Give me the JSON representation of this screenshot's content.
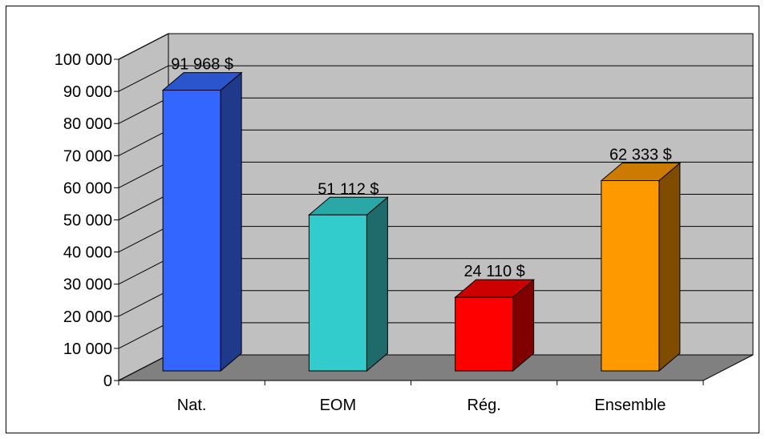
{
  "chart_data": {
    "type": "bar",
    "categories": [
      "Nat.",
      "EOM",
      "Rég.",
      "Ensemble"
    ],
    "values": [
      91968,
      51112,
      24110,
      62333
    ],
    "data_labels": [
      "91 968 $",
      "51 112 $",
      "24 110 $",
      "62 333 $"
    ],
    "y_ticks": [
      "0",
      "10 000",
      "20 000",
      "30 000",
      "40 000",
      "50 000",
      "60 000",
      "70 000",
      "80 000",
      "90 000",
      "100 000"
    ],
    "ylim": [
      0,
      100000
    ],
    "grid": true,
    "three_d": true,
    "title": "",
    "xlabel": "",
    "ylabel": "",
    "colors": {
      "bar_front": [
        "#3366ff",
        "#33cccc",
        "#ff0000",
        "#ff9900"
      ],
      "bar_top": [
        "#2b55cc",
        "#2aa8a8",
        "#cc0000",
        "#cc7a00"
      ],
      "bar_side": [
        "#1f3a8a",
        "#1f6b6b",
        "#800000",
        "#804d00"
      ],
      "wall": "#c0c0c0",
      "floor": "#808080",
      "border": "#000000"
    }
  }
}
